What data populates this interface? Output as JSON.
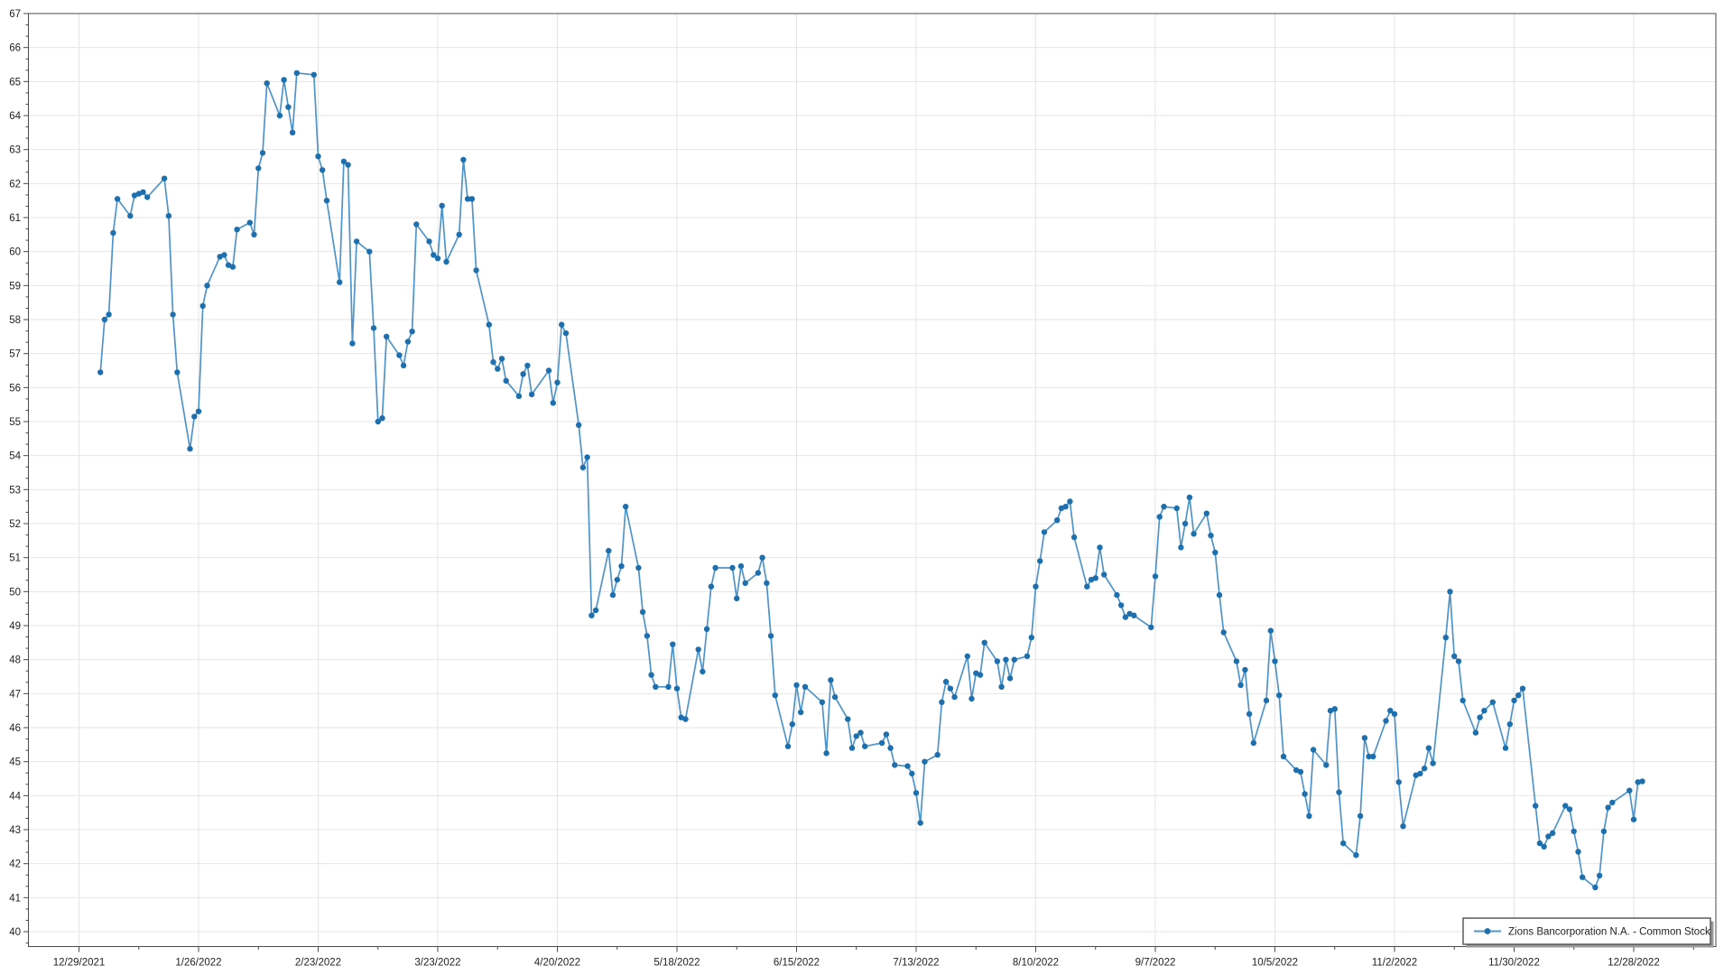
{
  "chart_data": {
    "type": "line",
    "title": "",
    "series": [
      {
        "name": "Zions Bancorporation N.A. - Common Stock",
        "start_date": "2022-01-03",
        "frequency": "daily-trading-days",
        "values": [
          56.45,
          58.0,
          58.15,
          60.55,
          61.55,
          61.05,
          61.65,
          61.7,
          61.75,
          61.6,
          62.15,
          61.05,
          58.15,
          56.45,
          54.2,
          55.15,
          55.3,
          58.4,
          59.0,
          59.85,
          59.9,
          59.6,
          59.55,
          60.65,
          60.85,
          60.5,
          62.45,
          62.9,
          64.95,
          64.0,
          65.05,
          64.25,
          63.5,
          65.25,
          65.2,
          62.8,
          62.4,
          61.5,
          59.1,
          62.65,
          62.55,
          57.3,
          60.3,
          60.0,
          57.75,
          55.0,
          55.1,
          57.5,
          56.95,
          56.65,
          57.35,
          57.65,
          60.8,
          60.3,
          59.9,
          59.8,
          61.35,
          59.7,
          60.5,
          62.7,
          61.55,
          61.55,
          59.45,
          57.85,
          56.75,
          56.55,
          56.85,
          56.2,
          55.75,
          56.4,
          56.65,
          55.8,
          56.5,
          55.55,
          56.15,
          57.85,
          57.6,
          54.9,
          53.65,
          53.95,
          49.3,
          49.45,
          51.2,
          49.9,
          50.35,
          50.75,
          52.5,
          50.7,
          49.4,
          48.7,
          47.55,
          47.2,
          47.2,
          48.45,
          47.15,
          46.3,
          46.25,
          48.3,
          47.65,
          48.9,
          50.15,
          50.7,
          50.7,
          49.8,
          50.75,
          50.25,
          50.55,
          51.0,
          50.25,
          48.7,
          46.95,
          45.45,
          46.1,
          47.25,
          46.45,
          47.2,
          46.75,
          45.25,
          47.4,
          46.9,
          46.25,
          45.4,
          45.75,
          45.85,
          45.45,
          45.55,
          45.8,
          45.4,
          44.9,
          44.87,
          44.65,
          44.08,
          43.2,
          45.0,
          45.2,
          46.75,
          47.35,
          47.15,
          46.9,
          48.1,
          46.85,
          47.6,
          47.55,
          48.5,
          47.95,
          47.2,
          48.0,
          47.45,
          48.0,
          48.1,
          48.65,
          50.15,
          50.9,
          51.75,
          52.1,
          52.45,
          52.5,
          52.65,
          51.6,
          50.15,
          50.35,
          50.4,
          51.3,
          50.5,
          49.9,
          49.6,
          49.25,
          49.35,
          49.3,
          48.95,
          50.45,
          52.2,
          52.5,
          52.45,
          51.3,
          52.0,
          52.77,
          51.7,
          52.3,
          51.65,
          51.15,
          49.9,
          48.8,
          47.95,
          47.25,
          47.7,
          46.4,
          45.55,
          46.8,
          48.85,
          47.95,
          46.95,
          45.15,
          44.75,
          44.7,
          44.05,
          43.4,
          45.35,
          44.9,
          46.5,
          46.55,
          44.1,
          42.6,
          42.25,
          43.4,
          45.7,
          45.15,
          45.15,
          46.2,
          46.5,
          46.4,
          44.4,
          43.1,
          44.6,
          44.65,
          44.8,
          45.4,
          44.95,
          48.65,
          50.0,
          48.1,
          47.95,
          46.8,
          45.85,
          46.3,
          46.5,
          46.75,
          45.4,
          46.1,
          46.8,
          46.95,
          47.15,
          43.7,
          42.6,
          42.5,
          42.8,
          42.9,
          43.7,
          43.6,
          42.95,
          42.35,
          41.6,
          41.3,
          41.65,
          42.95,
          43.65,
          43.8,
          44.15,
          43.3,
          44.4,
          44.42
        ]
      }
    ],
    "x_axis": {
      "tick_labels": [
        "12/29/2021",
        "1/26/2022",
        "2/23/2022",
        "3/23/2022",
        "4/20/2022",
        "5/18/2022",
        "6/15/2022",
        "7/13/2022",
        "8/10/2022",
        "9/7/2022",
        "10/5/2022",
        "11/2/2022",
        "11/30/2022",
        "12/28/2022"
      ],
      "tick_interval_days": 28,
      "minor_ticks": true
    },
    "y_axis": {
      "min": 40,
      "max": 67,
      "step": 1,
      "tick_labels": [
        "40",
        "41",
        "42",
        "43",
        "44",
        "45",
        "46",
        "47",
        "48",
        "49",
        "50",
        "51",
        "52",
        "53",
        "54",
        "55",
        "56",
        "57",
        "58",
        "59",
        "60",
        "61",
        "62",
        "63",
        "64",
        "65",
        "66",
        "67"
      ],
      "minor_ticks": true
    },
    "grid": true,
    "legend_position": "bottom-right"
  },
  "legend": {
    "label": "Zions Bancorporation N.A. - Common Stock"
  },
  "colors": {
    "line": "#4f94c8",
    "marker": "#1d6fae",
    "grid": "#e4e4e4",
    "axis": "#4a4a4a",
    "text": "#1f1f1f",
    "legend_border": "#4f4f4f",
    "legend_shadow": "#9a9a9a",
    "background": "#ffffff"
  }
}
